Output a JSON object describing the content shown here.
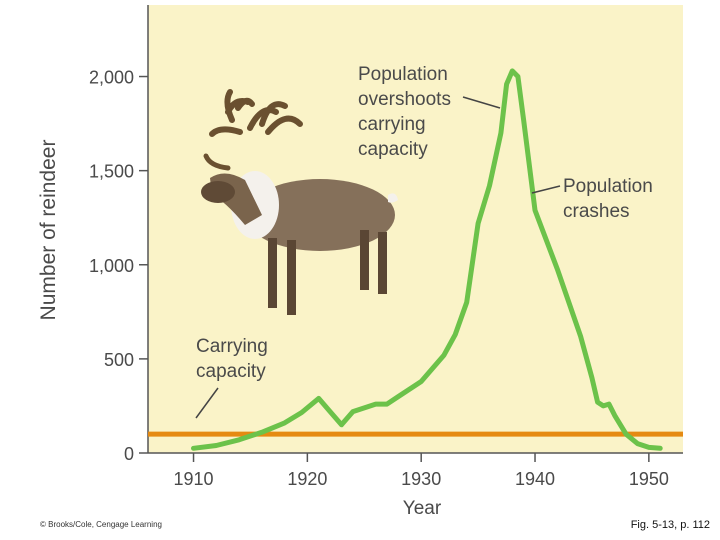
{
  "chart_data": {
    "type": "line",
    "title": "",
    "xlabel": "Year",
    "ylabel": "Number of reindeer",
    "xlim": [
      1906,
      1953
    ],
    "ylim": [
      0,
      2380
    ],
    "x_ticks": [
      "1910",
      "1920",
      "1930",
      "1940",
      "1950"
    ],
    "y_ticks": [
      "0",
      "500",
      "1,000",
      "1,500",
      "2,000"
    ],
    "series": [
      {
        "x": [
          1910,
          1912,
          1914,
          1916,
          1918,
          1919.5,
          1921,
          1922,
          1923,
          1924,
          1926,
          1927,
          1928,
          1930,
          1932,
          1933,
          1934,
          1935,
          1936,
          1937,
          1937.5,
          1938,
          1938.5,
          1939,
          1940,
          1942,
          1944,
          1945,
          1945.5,
          1946,
          1946.5,
          1947,
          1948,
          1949,
          1950,
          1951
        ],
        "values": [
          25,
          40,
          70,
          110,
          160,
          215,
          290,
          220,
          150,
          220,
          260,
          260,
          300,
          380,
          520,
          630,
          800,
          1220,
          1420,
          1700,
          1960,
          2030,
          2000,
          1770,
          1290,
          970,
          620,
          400,
          270,
          250,
          260,
          200,
          100,
          50,
          30,
          25
        ]
      }
    ],
    "reference_line": {
      "value": 100
    },
    "annotations": {
      "overshoot": [
        "Population",
        "overshoots",
        "carrying",
        "capacity"
      ],
      "crash": [
        "Population",
        "crashes"
      ],
      "capacity": [
        "Carrying",
        "capacity"
      ]
    },
    "colors": {
      "background": "#faf3c8",
      "line": "#6cc24a",
      "capacity_line": "#e58a12",
      "axis": "#555555"
    },
    "grid": false
  },
  "footer": {
    "copyright": "© Brooks/Cole, Cengage Learning",
    "figure_ref": "Fig. 5-13, p. 112"
  }
}
